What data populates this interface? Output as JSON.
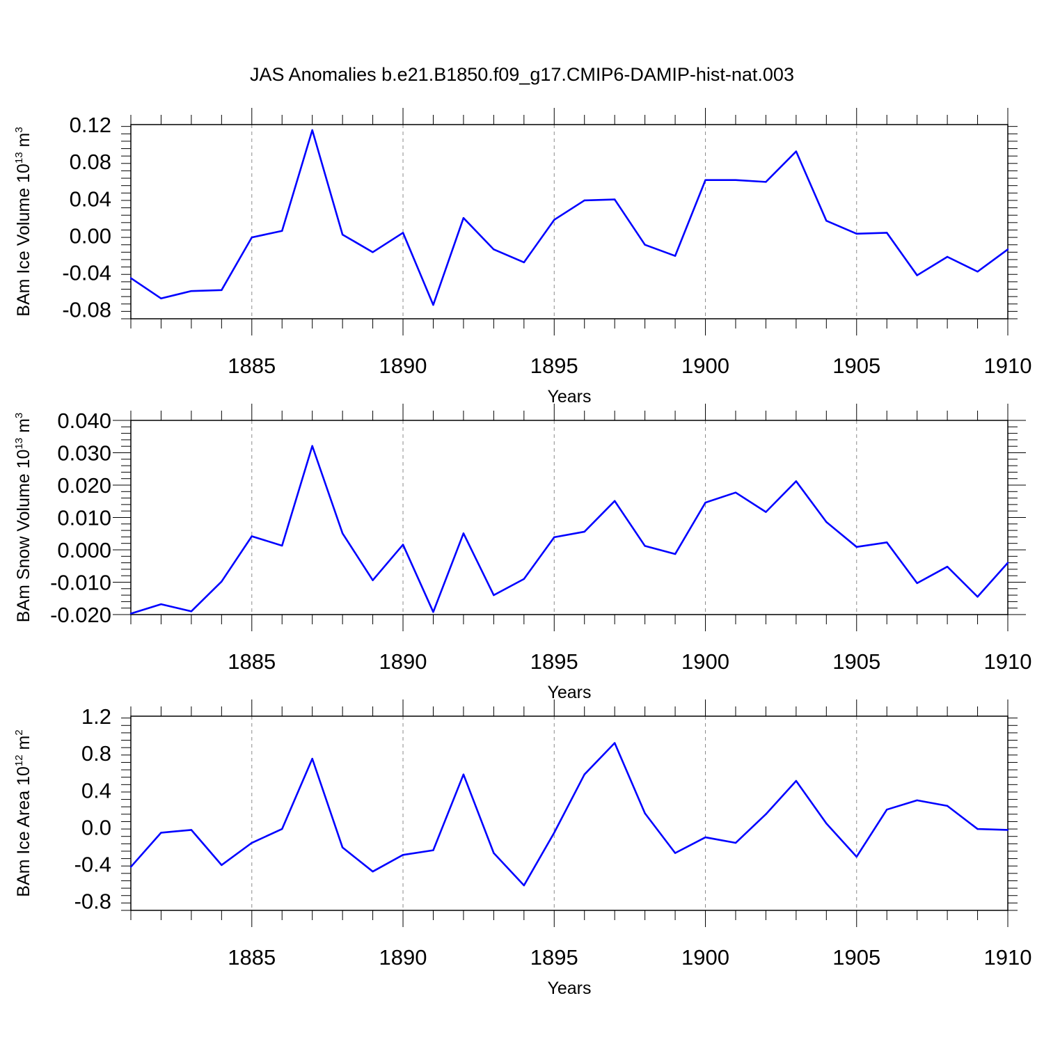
{
  "title": "JAS Anomalies b.e21.B1850.f09_g17.CMIP6-DAMIP-hist-nat.003",
  "colors": {
    "line": "#0000ff",
    "axis": "#000000",
    "grid": "#8a8a8a",
    "background": "#ffffff"
  },
  "chart_data": [
    {
      "type": "line",
      "ylabel": {
        "prefix": "BAm Ice Volume 10",
        "sup": "13",
        "mid": " m",
        "sup2": "3"
      },
      "xlabel": "Years",
      "xlim": [
        1881,
        1910
      ],
      "ylim": [
        -0.09,
        0.12
      ],
      "xticks": [
        1885,
        1890,
        1895,
        1900,
        1905,
        1910
      ],
      "xtick_labels": [
        "1885",
        "1890",
        "1895",
        "1900",
        "1905",
        "1910"
      ],
      "yticks": [
        -0.08,
        -0.04,
        0.0,
        0.04,
        0.08,
        0.12
      ],
      "ytick_labels": [
        "-0.08",
        "-0.04",
        "0.00",
        "0.04",
        "0.08",
        "0.12"
      ],
      "grid": "vertical dashed at major x ticks",
      "x": [
        1881,
        1882,
        1883,
        1884,
        1885,
        1886,
        1887,
        1888,
        1889,
        1890,
        1891,
        1892,
        1893,
        1894,
        1895,
        1896,
        1897,
        1898,
        1899,
        1900,
        1901,
        1902,
        1903,
        1904,
        1905,
        1906,
        1907,
        1908,
        1909,
        1910
      ],
      "series": [
        {
          "values": [
            -0.046,
            -0.068,
            -0.06,
            -0.059,
            -0.002,
            0.005,
            0.114,
            0.001,
            -0.018,
            0.003,
            -0.075,
            0.019,
            -0.015,
            -0.029,
            0.017,
            0.038,
            0.039,
            -0.01,
            -0.022,
            0.06,
            0.06,
            0.058,
            0.091,
            0.016,
            0.002,
            0.003,
            -0.043,
            -0.023,
            -0.039,
            -0.015
          ]
        }
      ]
    },
    {
      "type": "line",
      "ylabel": {
        "prefix": "BAm Snow Volume 10",
        "sup": "13",
        "mid": " m",
        "sup2": "3"
      },
      "xlabel": "Years",
      "xlim": [
        1881,
        1910
      ],
      "ylim": [
        -0.02,
        0.04
      ],
      "xticks": [
        1885,
        1890,
        1895,
        1900,
        1905,
        1910
      ],
      "xtick_labels": [
        "1885",
        "1890",
        "1895",
        "1900",
        "1905",
        "1910"
      ],
      "yticks": [
        -0.02,
        -0.01,
        0.0,
        0.01,
        0.02,
        0.03,
        0.04
      ],
      "ytick_labels": [
        "-0.020",
        "-0.010",
        "0.000",
        "0.010",
        "0.020",
        "0.030",
        "0.040"
      ],
      "grid": "vertical dashed at major x ticks",
      "x": [
        1881,
        1882,
        1883,
        1884,
        1885,
        1886,
        1887,
        1888,
        1889,
        1890,
        1891,
        1892,
        1893,
        1894,
        1895,
        1896,
        1897,
        1898,
        1899,
        1900,
        1901,
        1902,
        1903,
        1904,
        1905,
        1906,
        1907,
        1908,
        1909,
        1910
      ],
      "series": [
        {
          "values": [
            -0.0197,
            -0.0168,
            -0.019,
            -0.0098,
            0.0042,
            0.0013,
            0.0321,
            0.0051,
            -0.0094,
            0.0016,
            -0.0192,
            0.0051,
            -0.014,
            -0.009,
            0.0039,
            0.0056,
            0.0151,
            0.0012,
            -0.0013,
            0.0146,
            0.0177,
            0.0117,
            0.0212,
            0.0086,
            0.0009,
            0.0023,
            -0.0103,
            -0.0052,
            -0.0145,
            -0.004
          ]
        }
      ]
    },
    {
      "type": "line",
      "ylabel": {
        "prefix": "BAm Ice Area 10",
        "sup": "12",
        "mid": " m",
        "sup2": "2"
      },
      "xlabel": "Years",
      "xlim": [
        1881,
        1910
      ],
      "ylim": [
        -0.9,
        1.2
      ],
      "xticks": [
        1885,
        1890,
        1895,
        1900,
        1905,
        1910
      ],
      "xtick_labels": [
        "1885",
        "1890",
        "1895",
        "1900",
        "1905",
        "1910"
      ],
      "yticks": [
        -0.8,
        -0.4,
        0.0,
        0.4,
        0.8,
        1.2
      ],
      "ytick_labels": [
        "-0.8",
        "-0.4",
        "0.0",
        "0.4",
        "0.8",
        "1.2"
      ],
      "grid": "vertical dashed at major x ticks",
      "x": [
        1881,
        1882,
        1883,
        1884,
        1885,
        1886,
        1887,
        1888,
        1889,
        1890,
        1891,
        1892,
        1893,
        1894,
        1895,
        1896,
        1897,
        1898,
        1899,
        1900,
        1901,
        1902,
        1903,
        1904,
        1905,
        1906,
        1907,
        1908,
        1909,
        1910
      ],
      "series": [
        {
          "values": [
            -0.43,
            -0.06,
            -0.03,
            -0.41,
            -0.17,
            -0.02,
            0.74,
            -0.22,
            -0.48,
            -0.3,
            -0.25,
            0.57,
            -0.28,
            -0.63,
            -0.06,
            0.57,
            0.91,
            0.15,
            -0.28,
            -0.11,
            -0.17,
            0.14,
            0.5,
            0.04,
            -0.32,
            0.19,
            0.29,
            0.23,
            -0.02,
            -0.03
          ]
        }
      ]
    }
  ]
}
